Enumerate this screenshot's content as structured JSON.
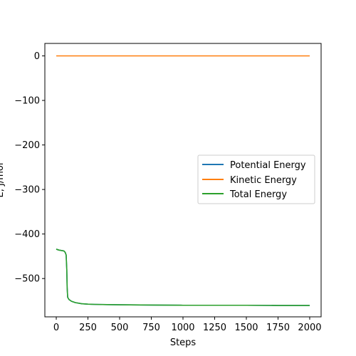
{
  "chart_data": {
    "type": "line",
    "title": "",
    "xlabel": "Steps",
    "ylabel": "E, J/mol",
    "xlim": [
      -90,
      2090
    ],
    "ylim": [
      -586,
      28
    ],
    "x_ticks": [
      0,
      250,
      500,
      750,
      1000,
      1250,
      1500,
      1750,
      2000
    ],
    "x_tick_labels": [
      "0",
      "250",
      "500",
      "750",
      "1000",
      "1250",
      "1500",
      "1750",
      "2000"
    ],
    "y_ticks": [
      0,
      -100,
      -200,
      -300,
      -400,
      -500
    ],
    "y_tick_labels": [
      "0",
      "−100",
      "−200",
      "−300",
      "−400",
      "−500"
    ],
    "grid": false,
    "legend_position": "center-right",
    "series": [
      {
        "name": "Potential Energy",
        "color": "#1f77b4",
        "x": [
          0,
          20,
          40,
          60,
          70,
          78,
          83,
          86,
          90,
          100,
          120,
          150,
          200,
          250,
          300,
          400,
          500,
          750,
          1000,
          1250,
          1500,
          1750,
          2000
        ],
        "y": [
          -434,
          -436,
          -437,
          -438,
          -441,
          -447,
          -480,
          -520,
          -542,
          -547,
          -551,
          -554,
          -556.5,
          -557.5,
          -558,
          -558.5,
          -559,
          -559.5,
          -560,
          -560,
          -560,
          -560.5,
          -560.5
        ]
      },
      {
        "name": "Kinetic Energy",
        "color": "#ff7f0e",
        "x": [
          0,
          2000
        ],
        "y": [
          0,
          0
        ]
      },
      {
        "name": "Total Energy",
        "color": "#2ca02c",
        "x": [
          0,
          20,
          40,
          60,
          70,
          78,
          83,
          86,
          90,
          100,
          120,
          150,
          200,
          250,
          300,
          400,
          500,
          750,
          1000,
          1250,
          1500,
          1750,
          2000
        ],
        "y": [
          -434,
          -436,
          -437,
          -438,
          -441,
          -447,
          -480,
          -520,
          -542,
          -547,
          -551,
          -554,
          -556.5,
          -557.5,
          -558,
          -558.5,
          -559,
          -559.5,
          -560,
          -560,
          -560,
          -560.5,
          -560.5
        ]
      }
    ]
  }
}
